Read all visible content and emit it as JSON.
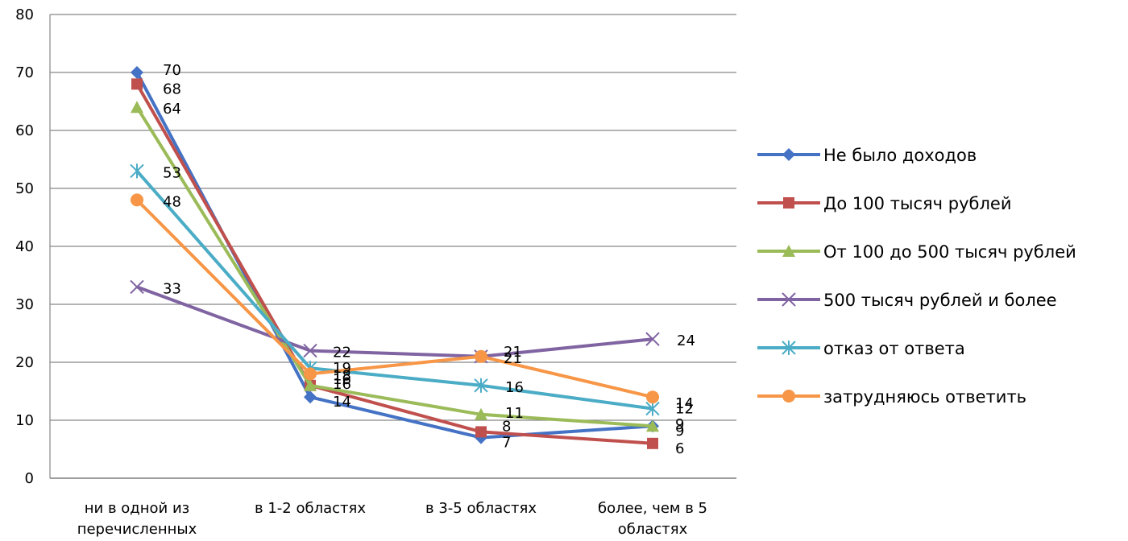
{
  "chart_data": {
    "type": "line",
    "title": "",
    "xlabel": "",
    "ylabel": "",
    "ylim": [
      0,
      80
    ],
    "yticks": [
      0,
      10,
      20,
      30,
      40,
      50,
      60,
      70,
      80
    ],
    "grid": true,
    "legend_position": "right",
    "categories": [
      [
        "ни в одной из",
        "перечисленных"
      ],
      [
        "в 1-2 областях"
      ],
      [
        "в 3-5 областях"
      ],
      [
        "более, чем в 5",
        "областях"
      ]
    ],
    "series": [
      {
        "name": "Не было доходов",
        "values": [
          70,
          14,
          7,
          9
        ],
        "color": "#4472C4",
        "marker": "diamond"
      },
      {
        "name": "До 100 тысяч рублей",
        "values": [
          68,
          16,
          8,
          6
        ],
        "color": "#C0504D",
        "marker": "square"
      },
      {
        "name": "От 100 до 500 тысяч рублей",
        "values": [
          64,
          16,
          11,
          9
        ],
        "color": "#9BBB59",
        "marker": "triangle"
      },
      {
        "name": "500 тысяч рублей и более",
        "values": [
          33,
          22,
          21,
          24
        ],
        "color": "#8064A2",
        "marker": "x"
      },
      {
        "name": "отказ от ответа",
        "values": [
          53,
          19,
          16,
          12
        ],
        "color": "#4BACC6",
        "marker": "star"
      },
      {
        "name": "затрудняюсь ответить",
        "values": [
          48,
          18,
          21,
          14
        ],
        "color": "#F79646",
        "marker": "circle"
      }
    ]
  }
}
